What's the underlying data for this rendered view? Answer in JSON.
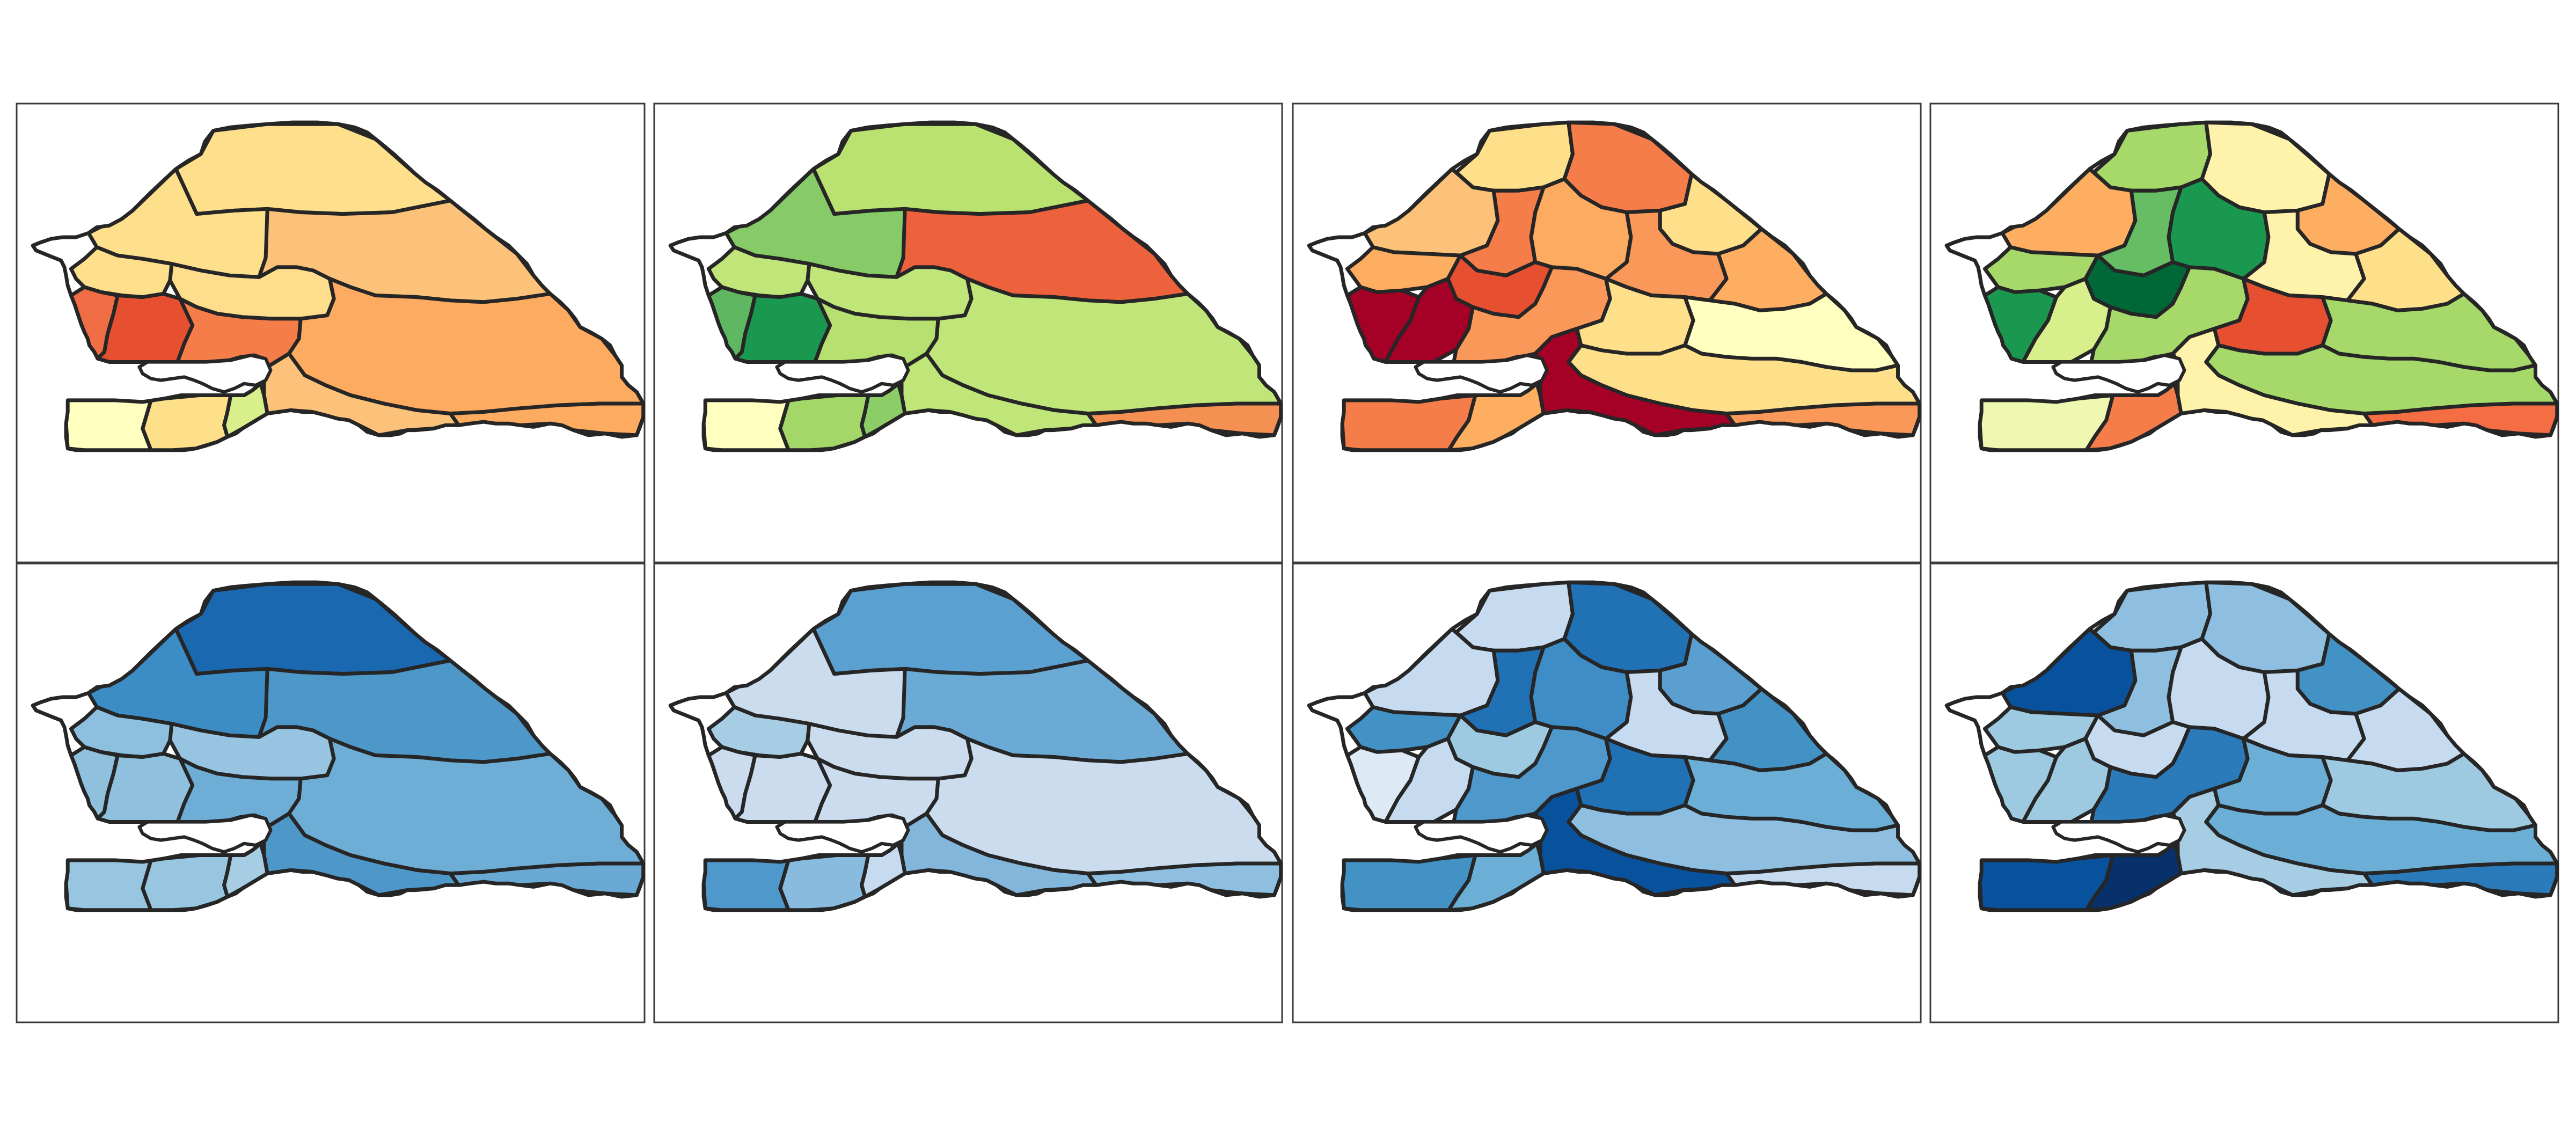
{
  "figure": {
    "description_visible_text": "",
    "rows": 2,
    "cols": 4
  },
  "palettes": {
    "diverging": [
      "#a50026",
      "#e34a33",
      "#f46d43",
      "#fdae61",
      "#fee08b",
      "#ffffbf",
      "#d9ef8b",
      "#a6d96a",
      "#66bd63",
      "#1a9850",
      "#006837"
    ],
    "blues": [
      "#deebf7",
      "#c6dbef",
      "#9ecae1",
      "#6baed6",
      "#4292c6",
      "#2171b5",
      "#08519c",
      "#08306b"
    ]
  },
  "maps": [
    {
      "level": "regions",
      "colors": [
        "#fedf8c",
        "#fedf8c",
        "#fdc27a",
        "#fedf8c",
        "#fedd8c",
        "#f16d46",
        "#e65031",
        "#f57d4a",
        "#fdab61",
        "#fdc27a",
        "#fee08b",
        "#ffffbf",
        "#d9ef8b",
        "#fdab61"
      ]
    },
    {
      "level": "regions",
      "colors": [
        "#b9e270",
        "#86cb67",
        "#ee613d",
        "#c0e67a",
        "#c0e67a",
        "#5fb861",
        "#1a9850",
        "#b6e06f",
        "#c0e67a",
        "#c0e67a",
        "#a3d869",
        "#ffffbf",
        "#8ccd67",
        "#f59053"
      ]
    },
    {
      "level": "departments",
      "colors": [
        "#fee08b",
        "#f57d4a",
        "#fdab61",
        "#fee08b",
        "#f99858",
        "#fdae61",
        "#fdc27a",
        "#f57d4a",
        "#fdae61",
        "#e65031",
        "#a50026",
        "#a50026",
        "#f99858",
        "#fee08b",
        "#ffffbf",
        "#fee08b",
        "#a50026",
        "#f57d4a",
        "#fdae61",
        "#f99858"
      ]
    },
    {
      "level": "departments",
      "colors": [
        "#a6d96a",
        "#fff3ac",
        "#1a9850",
        "#fdae61",
        "#fff3ac",
        "#fee08b",
        "#fdae61",
        "#66bd63",
        "#a6d96a",
        "#006837",
        "#1a9850",
        "#d9ef8b",
        "#a6d96a",
        "#e65031",
        "#a6d96a",
        "#a6d96a",
        "#fff3ac",
        "#eff8b0",
        "#f57d4a",
        "#f46d43"
      ]
    },
    {
      "level": "regions",
      "colors": [
        "#1a68b0",
        "#3c8dc5",
        "#4d98c9",
        "#8dc0df",
        "#97c5e1",
        "#8fc1de",
        "#8fc1de",
        "#6eaed6",
        "#6eaed6",
        "#4d98c9",
        "#98c6e0",
        "#98c6e0",
        "#a6cde3",
        "#69a9d3"
      ]
    },
    {
      "level": "regions",
      "colors": [
        "#5aa0d1",
        "#cadcee",
        "#6aaad4",
        "#a7cde5",
        "#cadcee",
        "#cadcee",
        "#cadcee",
        "#cadcee",
        "#cadcee",
        "#82b7db",
        "#89bbde",
        "#4f98cb",
        "#c6dbef",
        "#8ebfe0"
      ]
    },
    {
      "level": "departments",
      "colors": [
        "#c6dbef",
        "#2171b5",
        "#3f8dc6",
        "#5a9fcf",
        "#c6dbef",
        "#4292c6",
        "#c6dbef",
        "#2171b5",
        "#4292c6",
        "#9ecae1",
        "#dde9f5",
        "#c6dbef",
        "#4f98cb",
        "#2171b5",
        "#6baed6",
        "#8ebfe0",
        "#08519c",
        "#4292c6",
        "#6baed6",
        "#c6dbef"
      ]
    },
    {
      "level": "departments",
      "colors": [
        "#8ebfe0",
        "#8ebfe0",
        "#c6dbef",
        "#4292c6",
        "#c6dbef",
        "#c6dbef",
        "#08519c",
        "#8ebfe0",
        "#9ecae1",
        "#c6dbef",
        "#9ecae1",
        "#9ecae1",
        "#2b7bba",
        "#6baed6",
        "#9ecae1",
        "#6baed6",
        "#a6cde3",
        "#08519c",
        "#08306b",
        "#2b7bba"
      ]
    }
  ]
}
